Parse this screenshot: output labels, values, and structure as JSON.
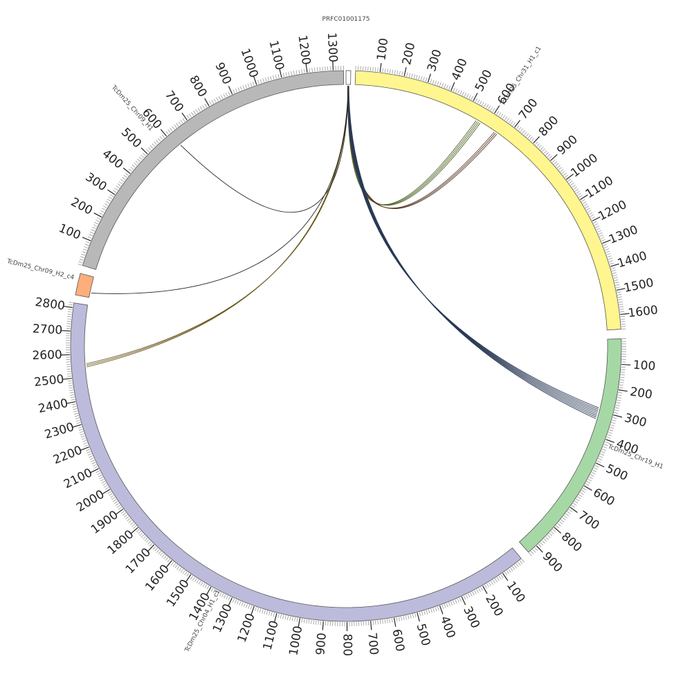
{
  "diagram": {
    "type": "circos",
    "segments": [
      {
        "id": "PRFC01001175",
        "label": "PRFC01001175",
        "color": "#ffffff",
        "length": 20,
        "labels": []
      },
      {
        "id": "chr31",
        "label": "TcDm25_Chr31_H1_c1",
        "color": "#fff68f",
        "length": 1660,
        "labels": [
          "100",
          "200",
          "300",
          "400",
          "500",
          "600",
          "700",
          "800",
          "900",
          "1000",
          "1100",
          "1200",
          "1300",
          "1400",
          "1500",
          "1600"
        ]
      },
      {
        "id": "chr19",
        "label": "TcDm25_Chr19_H1",
        "color": "#a6d8a6",
        "length": 940,
        "labels": [
          "100",
          "200",
          "300",
          "400",
          "500",
          "600",
          "700",
          "800",
          "900"
        ]
      },
      {
        "id": "chr04",
        "label": "TcDm25_Chr04_H1_c1",
        "color": "#bcbbdb",
        "length": 2820,
        "labels": [
          "100",
          "200",
          "300",
          "400",
          "500",
          "600",
          "700",
          "800",
          "900",
          "1000",
          "1100",
          "1200",
          "1300",
          "1400",
          "1500",
          "1600",
          "1700",
          "1800",
          "1900",
          "2000",
          "2100",
          "2200",
          "2300",
          "2400",
          "2500",
          "2600",
          "2700",
          "2800"
        ]
      },
      {
        "id": "chr09h2",
        "label": "TcDm25_Chr09_H2_c4",
        "color": "#fdae7b",
        "length": 90,
        "labels": []
      },
      {
        "id": "chr09",
        "label": "TcDm25_Chr09_H1",
        "color": "#b8b8b8",
        "length": 1340,
        "labels": [
          "100",
          "200",
          "300",
          "400",
          "500",
          "600",
          "700",
          "800",
          "900",
          "1000",
          "1100",
          "1200",
          "1300"
        ]
      }
    ],
    "links": [
      {
        "from": "PRFC01001175",
        "to": "chr31",
        "target_pos": 560,
        "color": "#556b2f",
        "count": 4
      },
      {
        "from": "PRFC01001175",
        "to": "chr31",
        "target_pos": 650,
        "color": "#5a3a2a",
        "count": 3
      },
      {
        "from": "PRFC01001175",
        "to": "chr19",
        "target_pos": 310,
        "color": "#2a3a55",
        "count": 8
      },
      {
        "from": "PRFC01001175",
        "to": "chr04",
        "target_pos": 2550,
        "color": "#6b5a20",
        "count": 3
      },
      {
        "from": "PRFC01001175",
        "to": "chr09h2",
        "target_pos": 20,
        "color": "#222222",
        "count": 1
      },
      {
        "from": "PRFC01001175",
        "to": "chr09",
        "target_pos": 620,
        "color": "#222222",
        "count": 1
      }
    ]
  }
}
